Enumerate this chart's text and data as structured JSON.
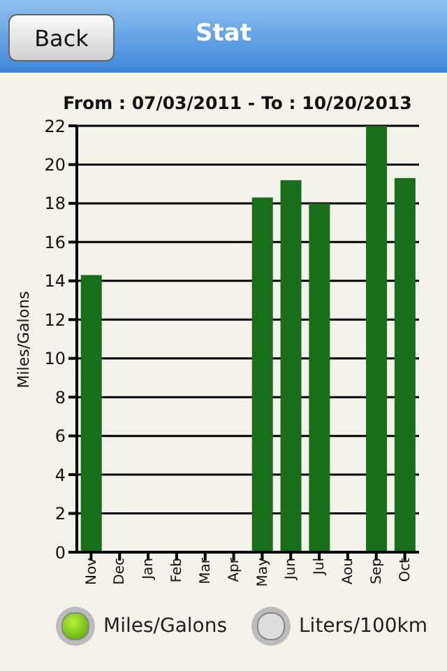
{
  "chart_data": {
    "type": "bar",
    "title": "Stat",
    "subtitle": "From : 07/03/2011 - To : 10/20/2013",
    "ylabel": "Miles/Galons",
    "categories": [
      "Nov",
      "Dec",
      "Jan",
      "Feb",
      "Mar",
      "Apr",
      "May",
      "Jun",
      "Jul",
      "Aou",
      "Sep",
      "Oct"
    ],
    "values": [
      14.3,
      null,
      null,
      null,
      null,
      null,
      18.3,
      19.2,
      18.0,
      null,
      22,
      19.3
    ],
    "color": "#1a6e1a",
    "ylim": [
      0,
      22
    ],
    "yticks": [
      0,
      2,
      4,
      6,
      8,
      10,
      12,
      14,
      16,
      18,
      20,
      22
    ],
    "grid": "y",
    "annotations": [
      "Back",
      "Miles/Galons",
      "Liters/100km"
    ]
  }
}
